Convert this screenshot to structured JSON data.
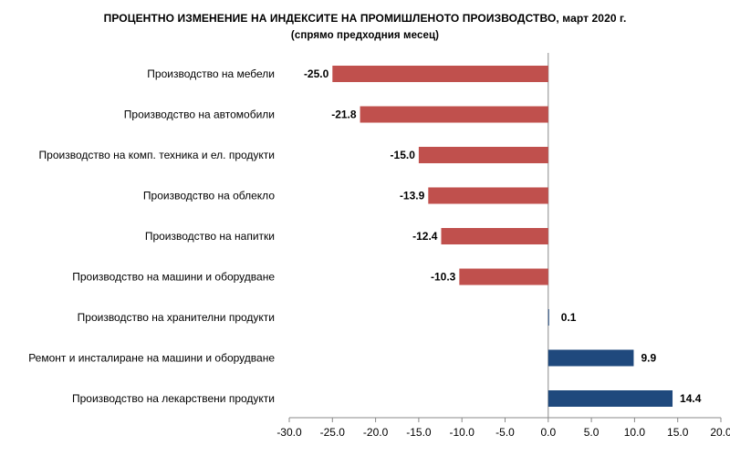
{
  "chart_data": {
    "type": "bar",
    "orientation": "horizontal",
    "title": "ПРОЦЕНТНО ИЗМЕНЕНИЕ НА ИНДЕКСИТЕ НА ПРОМИШЛЕНОТО ПРОИЗВОДСТВО, март 2020 г.",
    "subtitle": "(спрямо предходния месец)",
    "categories": [
      "Производство на мебели",
      "Производство на автомобили",
      "Производство на комп. техника и ел. продукти",
      "Производство на облекло",
      "Производство на напитки",
      "Производство на машини и оборудване",
      "Производство на хранителни продукти",
      "Ремонт и инсталиране на машини и оборудване",
      "Производство на лекарствени продукти"
    ],
    "values": [
      -25.0,
      -21.8,
      -15.0,
      -13.9,
      -12.4,
      -10.3,
      0.1,
      9.9,
      14.4
    ],
    "value_labels": [
      "-25.0",
      "-21.8",
      "-15.0",
      "-13.9",
      "-12.4",
      "-10.3",
      "0.1",
      "9.9",
      "14.4"
    ],
    "xlim": [
      -30,
      20
    ],
    "x_ticks": [
      "-30.0",
      "-25.0",
      "-20.0",
      "-15.0",
      "-10.0",
      "-5.0",
      "0.0",
      "5.0",
      "10.0",
      "15.0",
      "20.0"
    ],
    "x_tick_values": [
      -30,
      -25,
      -20,
      -15,
      -10,
      -5,
      0,
      5,
      10,
      15,
      20
    ],
    "colors": {
      "negative": "#c0504d",
      "positive": "#1f497d",
      "axis": "#888888"
    },
    "grid": false,
    "legend": "none"
  }
}
